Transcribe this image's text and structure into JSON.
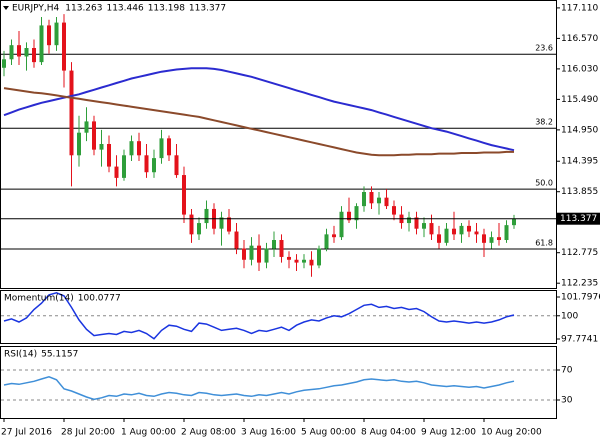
{
  "chart_data": [
    {
      "type": "candlestick",
      "title": "EURJPY,H4",
      "categories": [
        "27 Jul 2016",
        null,
        null,
        null,
        null,
        null,
        null,
        null,
        "28 Jul 20:00",
        null,
        null,
        null,
        null,
        null,
        null,
        null,
        "1 Aug 00:00",
        null,
        null,
        null,
        null,
        null,
        null,
        null,
        "2 Aug 08:00",
        null,
        null,
        null,
        null,
        null,
        null,
        null,
        "3 Aug 16:00",
        null,
        null,
        null,
        null,
        null,
        null,
        null,
        "5 Aug 00:00",
        null,
        null,
        null,
        null,
        null,
        null,
        null,
        "8 Aug 04:00",
        null,
        null,
        null,
        null,
        null,
        null,
        null,
        "9 Aug 12:00",
        null,
        null,
        null,
        null,
        null,
        null,
        null,
        "10 Aug 20:00",
        null,
        null,
        null,
        null
      ],
      "open": [
        116.05,
        116.2,
        116.45,
        116.25,
        116.4,
        116.15,
        116.8,
        116.45,
        116.85,
        116.0,
        114.5,
        114.9,
        115.1,
        114.6,
        114.7,
        114.3,
        114.1,
        114.5,
        114.75,
        114.5,
        114.2,
        114.45,
        114.8,
        114.5,
        114.15,
        113.45,
        113.1,
        113.3,
        113.55,
        113.2,
        113.4,
        113.15,
        112.85,
        112.65,
        112.9,
        112.6,
        112.85,
        113.0,
        112.7,
        112.65,
        112.6,
        112.65,
        112.55,
        112.85,
        113.1,
        113.05,
        113.5,
        113.35,
        113.6,
        113.85,
        113.65,
        113.75,
        113.6,
        113.45,
        113.3,
        113.4,
        113.2,
        113.3,
        113.1,
        112.95,
        113.2,
        113.1,
        113.25,
        113.15,
        113.1,
        112.95,
        113.05,
        113.0,
        113.263
      ],
      "high": [
        116.35,
        116.55,
        116.7,
        116.5,
        116.55,
        116.95,
        116.9,
        116.95,
        117.0,
        116.15,
        115.2,
        115.35,
        115.2,
        114.95,
        114.85,
        114.5,
        114.6,
        114.85,
        114.9,
        114.7,
        114.6,
        114.95,
        114.85,
        114.7,
        114.3,
        113.55,
        113.4,
        113.7,
        113.65,
        113.5,
        113.55,
        113.3,
        113.0,
        113.05,
        113.1,
        112.95,
        113.15,
        113.1,
        112.8,
        112.75,
        112.75,
        112.8,
        112.9,
        113.2,
        113.25,
        113.6,
        113.75,
        113.65,
        113.95,
        113.95,
        113.85,
        113.9,
        113.7,
        113.6,
        113.5,
        113.5,
        113.4,
        113.45,
        113.25,
        113.3,
        113.5,
        113.3,
        113.35,
        113.3,
        113.2,
        113.15,
        113.3,
        113.35,
        113.446
      ],
      "low": [
        115.9,
        116.1,
        116.1,
        116.0,
        116.05,
        116.1,
        116.3,
        116.35,
        115.7,
        113.95,
        114.3,
        114.75,
        114.5,
        114.3,
        114.2,
        113.95,
        114.05,
        114.4,
        114.4,
        114.1,
        114.1,
        114.35,
        114.4,
        114.1,
        113.3,
        112.95,
        113.0,
        113.2,
        113.1,
        112.9,
        113.1,
        112.75,
        112.5,
        112.55,
        112.45,
        112.5,
        112.7,
        112.6,
        112.5,
        112.45,
        112.5,
        112.35,
        112.5,
        112.8,
        112.95,
        113.0,
        113.3,
        113.2,
        113.5,
        113.55,
        113.45,
        113.55,
        113.35,
        113.2,
        113.15,
        113.1,
        113.05,
        113.0,
        112.85,
        112.9,
        113.0,
        112.95,
        113.05,
        112.95,
        112.7,
        112.85,
        112.9,
        112.95,
        113.198
      ],
      "close": [
        116.2,
        116.45,
        116.25,
        116.4,
        116.15,
        116.8,
        116.45,
        116.85,
        116.0,
        114.5,
        114.9,
        115.1,
        114.6,
        114.7,
        114.3,
        114.1,
        114.5,
        114.75,
        114.5,
        114.2,
        114.45,
        114.8,
        114.5,
        114.15,
        113.45,
        113.1,
        113.3,
        113.55,
        113.2,
        113.4,
        113.15,
        112.85,
        112.65,
        112.9,
        112.6,
        112.85,
        113.0,
        112.7,
        112.65,
        112.6,
        112.65,
        112.55,
        112.85,
        113.1,
        113.05,
        113.5,
        113.35,
        113.6,
        113.85,
        113.65,
        113.75,
        113.6,
        113.45,
        113.3,
        113.4,
        113.2,
        113.3,
        113.1,
        112.95,
        113.2,
        113.1,
        113.25,
        113.15,
        113.1,
        112.95,
        113.05,
        113.0,
        113.263,
        113.377
      ],
      "up_color": "#2e9e3a",
      "down_color": "#e3121b",
      "series": [
        {
          "color": "#2b2bd0",
          "values": [
            115.21,
            115.26,
            115.31,
            115.35,
            115.39,
            115.43,
            115.46,
            115.49,
            115.52,
            115.55,
            115.58,
            115.62,
            115.66,
            115.7,
            115.74,
            115.78,
            115.82,
            115.86,
            115.89,
            115.92,
            115.95,
            115.98,
            116.0,
            116.02,
            116.03,
            116.04,
            116.04,
            116.04,
            116.03,
            116.01,
            115.98,
            115.95,
            115.92,
            115.89,
            115.85,
            115.81,
            115.77,
            115.73,
            115.69,
            115.65,
            115.61,
            115.57,
            115.53,
            115.49,
            115.45,
            115.42,
            115.39,
            115.36,
            115.33,
            115.3,
            115.26,
            115.22,
            115.18,
            115.14,
            115.1,
            115.06,
            115.02,
            114.98,
            114.95,
            114.92,
            114.88,
            114.84,
            114.8,
            114.76,
            114.72,
            114.68,
            114.65,
            114.62,
            114.59
          ]
        },
        {
          "color": "#8b4a2b",
          "values": [
            115.69,
            115.67,
            115.65,
            115.63,
            115.61,
            115.6,
            115.58,
            115.56,
            115.54,
            115.52,
            115.5,
            115.48,
            115.46,
            115.44,
            115.42,
            115.4,
            115.38,
            115.36,
            115.34,
            115.32,
            115.3,
            115.28,
            115.26,
            115.24,
            115.22,
            115.2,
            115.18,
            115.15,
            115.12,
            115.09,
            115.06,
            115.03,
            115.0,
            114.97,
            114.94,
            114.91,
            114.88,
            114.85,
            114.82,
            114.79,
            114.76,
            114.73,
            114.7,
            114.67,
            114.64,
            114.61,
            114.58,
            114.55,
            114.53,
            114.51,
            114.5,
            114.5,
            114.5,
            114.51,
            114.51,
            114.52,
            114.52,
            114.52,
            114.53,
            114.53,
            114.53,
            114.54,
            114.54,
            114.54,
            114.55,
            114.55,
            114.55,
            114.56,
            114.56
          ]
        }
      ],
      "fib_levels": [
        {
          "label": "23.6",
          "value": 116.29
        },
        {
          "label": "38.2",
          "value": 114.98
        },
        {
          "label": "50.0",
          "value": 113.9
        },
        {
          "label": "61.8",
          "value": 112.84
        }
      ],
      "ylim": [
        112.15,
        117.25
      ],
      "yticks": [
        {
          "value": 117.11,
          "label": "117.110"
        },
        {
          "value": 116.57,
          "label": "116.570"
        },
        {
          "value": 116.03,
          "label": "116.030"
        },
        {
          "value": 115.49,
          "label": "115.490"
        },
        {
          "value": 114.95,
          "label": "114.950"
        },
        114.395,
        113.855,
        112.775,
        112.235
      ]
    },
    {
      "type": "line",
      "title": "Momentum(14)",
      "color": "#1a35e0",
      "values": [
        99.5,
        99.7,
        99.4,
        99.8,
        100.6,
        101.2,
        102.0,
        102.2,
        101.9,
        100.8,
        99.6,
        98.7,
        98.1,
        98.2,
        98.3,
        98.2,
        98.5,
        98.4,
        98.6,
        98.3,
        97.8,
        98.6,
        99.1,
        99.0,
        98.7,
        98.5,
        99.3,
        99.2,
        98.9,
        98.6,
        98.7,
        98.8,
        98.6,
        98.3,
        98.6,
        98.5,
        98.7,
        98.9,
        98.6,
        99.1,
        99.4,
        99.6,
        99.5,
        99.8,
        100.0,
        99.9,
        100.2,
        100.6,
        101.0,
        101.1,
        100.8,
        100.9,
        100.7,
        100.8,
        100.6,
        100.7,
        100.4,
        99.9,
        99.5,
        99.4,
        99.5,
        99.4,
        99.3,
        99.4,
        99.3,
        99.4,
        99.6,
        99.9,
        100.0777
      ],
      "ylim": [
        97.39,
        102.47
      ],
      "yticks": [
        101.7976,
        100,
        97.7741
      ],
      "levels": [
        100
      ]
    },
    {
      "type": "line",
      "title": "RSI(14)",
      "color": "#3f8fd8",
      "values": [
        50,
        52,
        51,
        53,
        55,
        58,
        61,
        57,
        45,
        42,
        38,
        34,
        31,
        33,
        36,
        35,
        38,
        37,
        39,
        36,
        35,
        38,
        40,
        39,
        37,
        36,
        40,
        39,
        37,
        36,
        37,
        38,
        36,
        35,
        37,
        36,
        38,
        40,
        38,
        41,
        43,
        44,
        45,
        47,
        49,
        50,
        52,
        54,
        57,
        58,
        57,
        56,
        57,
        55,
        54,
        55,
        53,
        50,
        49,
        48,
        49,
        48,
        47,
        48,
        46,
        48,
        50,
        53,
        55.1157
      ],
      "ylim": [
        6,
        102
      ],
      "yticks": [
        70,
        30
      ],
      "levels": [
        70,
        30
      ]
    }
  ]
}
